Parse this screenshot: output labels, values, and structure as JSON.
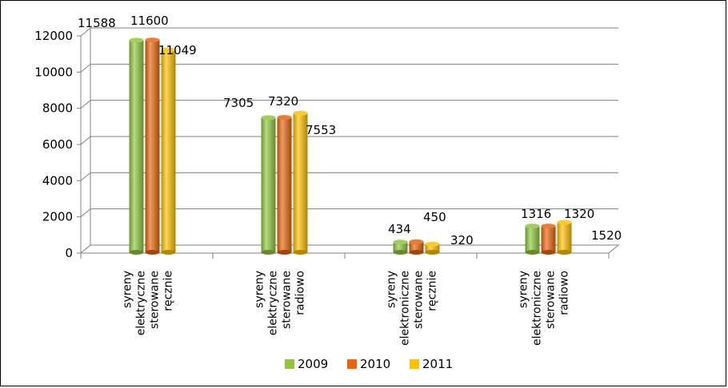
{
  "chart_data": {
    "type": "bar",
    "categories": [
      [
        "syreny",
        "elektryczne",
        "sterowane",
        "ręcznie"
      ],
      [
        "syreny",
        "elektryczne",
        "sterowane",
        "radiowo"
      ],
      [
        "syreny",
        "elektroniczne",
        "sterowane",
        "ręcznie"
      ],
      [
        "syreny",
        "elektroniczne",
        "sterowane",
        "radiowo"
      ]
    ],
    "series": [
      {
        "name": "2009",
        "values": [
          11588,
          7305,
          434,
          1316
        ],
        "color": "#8fc63e"
      },
      {
        "name": "2010",
        "values": [
          11600,
          7320,
          450,
          1320
        ],
        "color": "#e8650e"
      },
      {
        "name": "2011",
        "values": [
          11049,
          7553,
          320,
          1520
        ],
        "color": "#ffc000"
      }
    ],
    "yticks": [
      0,
      2000,
      4000,
      6000,
      8000,
      10000,
      12000
    ],
    "ylim": [
      0,
      12000
    ],
    "grid": true,
    "legend": "bottom",
    "title": "",
    "xlabel": "",
    "ylabel": ""
  }
}
